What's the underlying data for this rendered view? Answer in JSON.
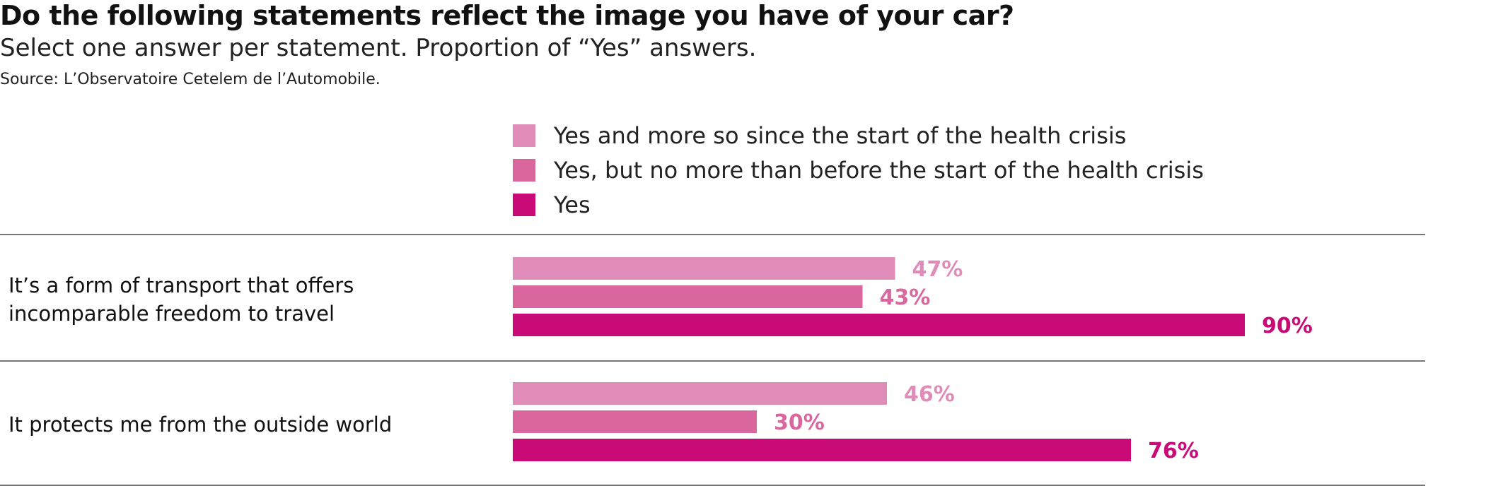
{
  "title": "Do the following statements reflect the image you have of your car?",
  "subtitle": "Select one answer per statement. Proportion of “Yes” answers.",
  "source": "Source: L’Observatoire Cetelem de l’Automobile.",
  "colors": {
    "series1": "#df8db8",
    "series2": "#d9679e",
    "series3": "#c80b77"
  },
  "chart_data": {
    "type": "bar",
    "orientation": "horizontal",
    "categories": [
      "It’s a form of transport that offers incomparable freedom to travel",
      "It protects me from the outside world"
    ],
    "series": [
      {
        "name": "Yes and more so since the start of the health crisis",
        "values": [
          47,
          46
        ]
      },
      {
        "name": "Yes, but no more than before the start of the health crisis",
        "values": [
          43,
          30
        ]
      },
      {
        "name": "Yes",
        "values": [
          90,
          76
        ]
      }
    ],
    "unit": "%",
    "xlim": [
      0,
      100
    ],
    "grid": false,
    "legend": "top"
  }
}
